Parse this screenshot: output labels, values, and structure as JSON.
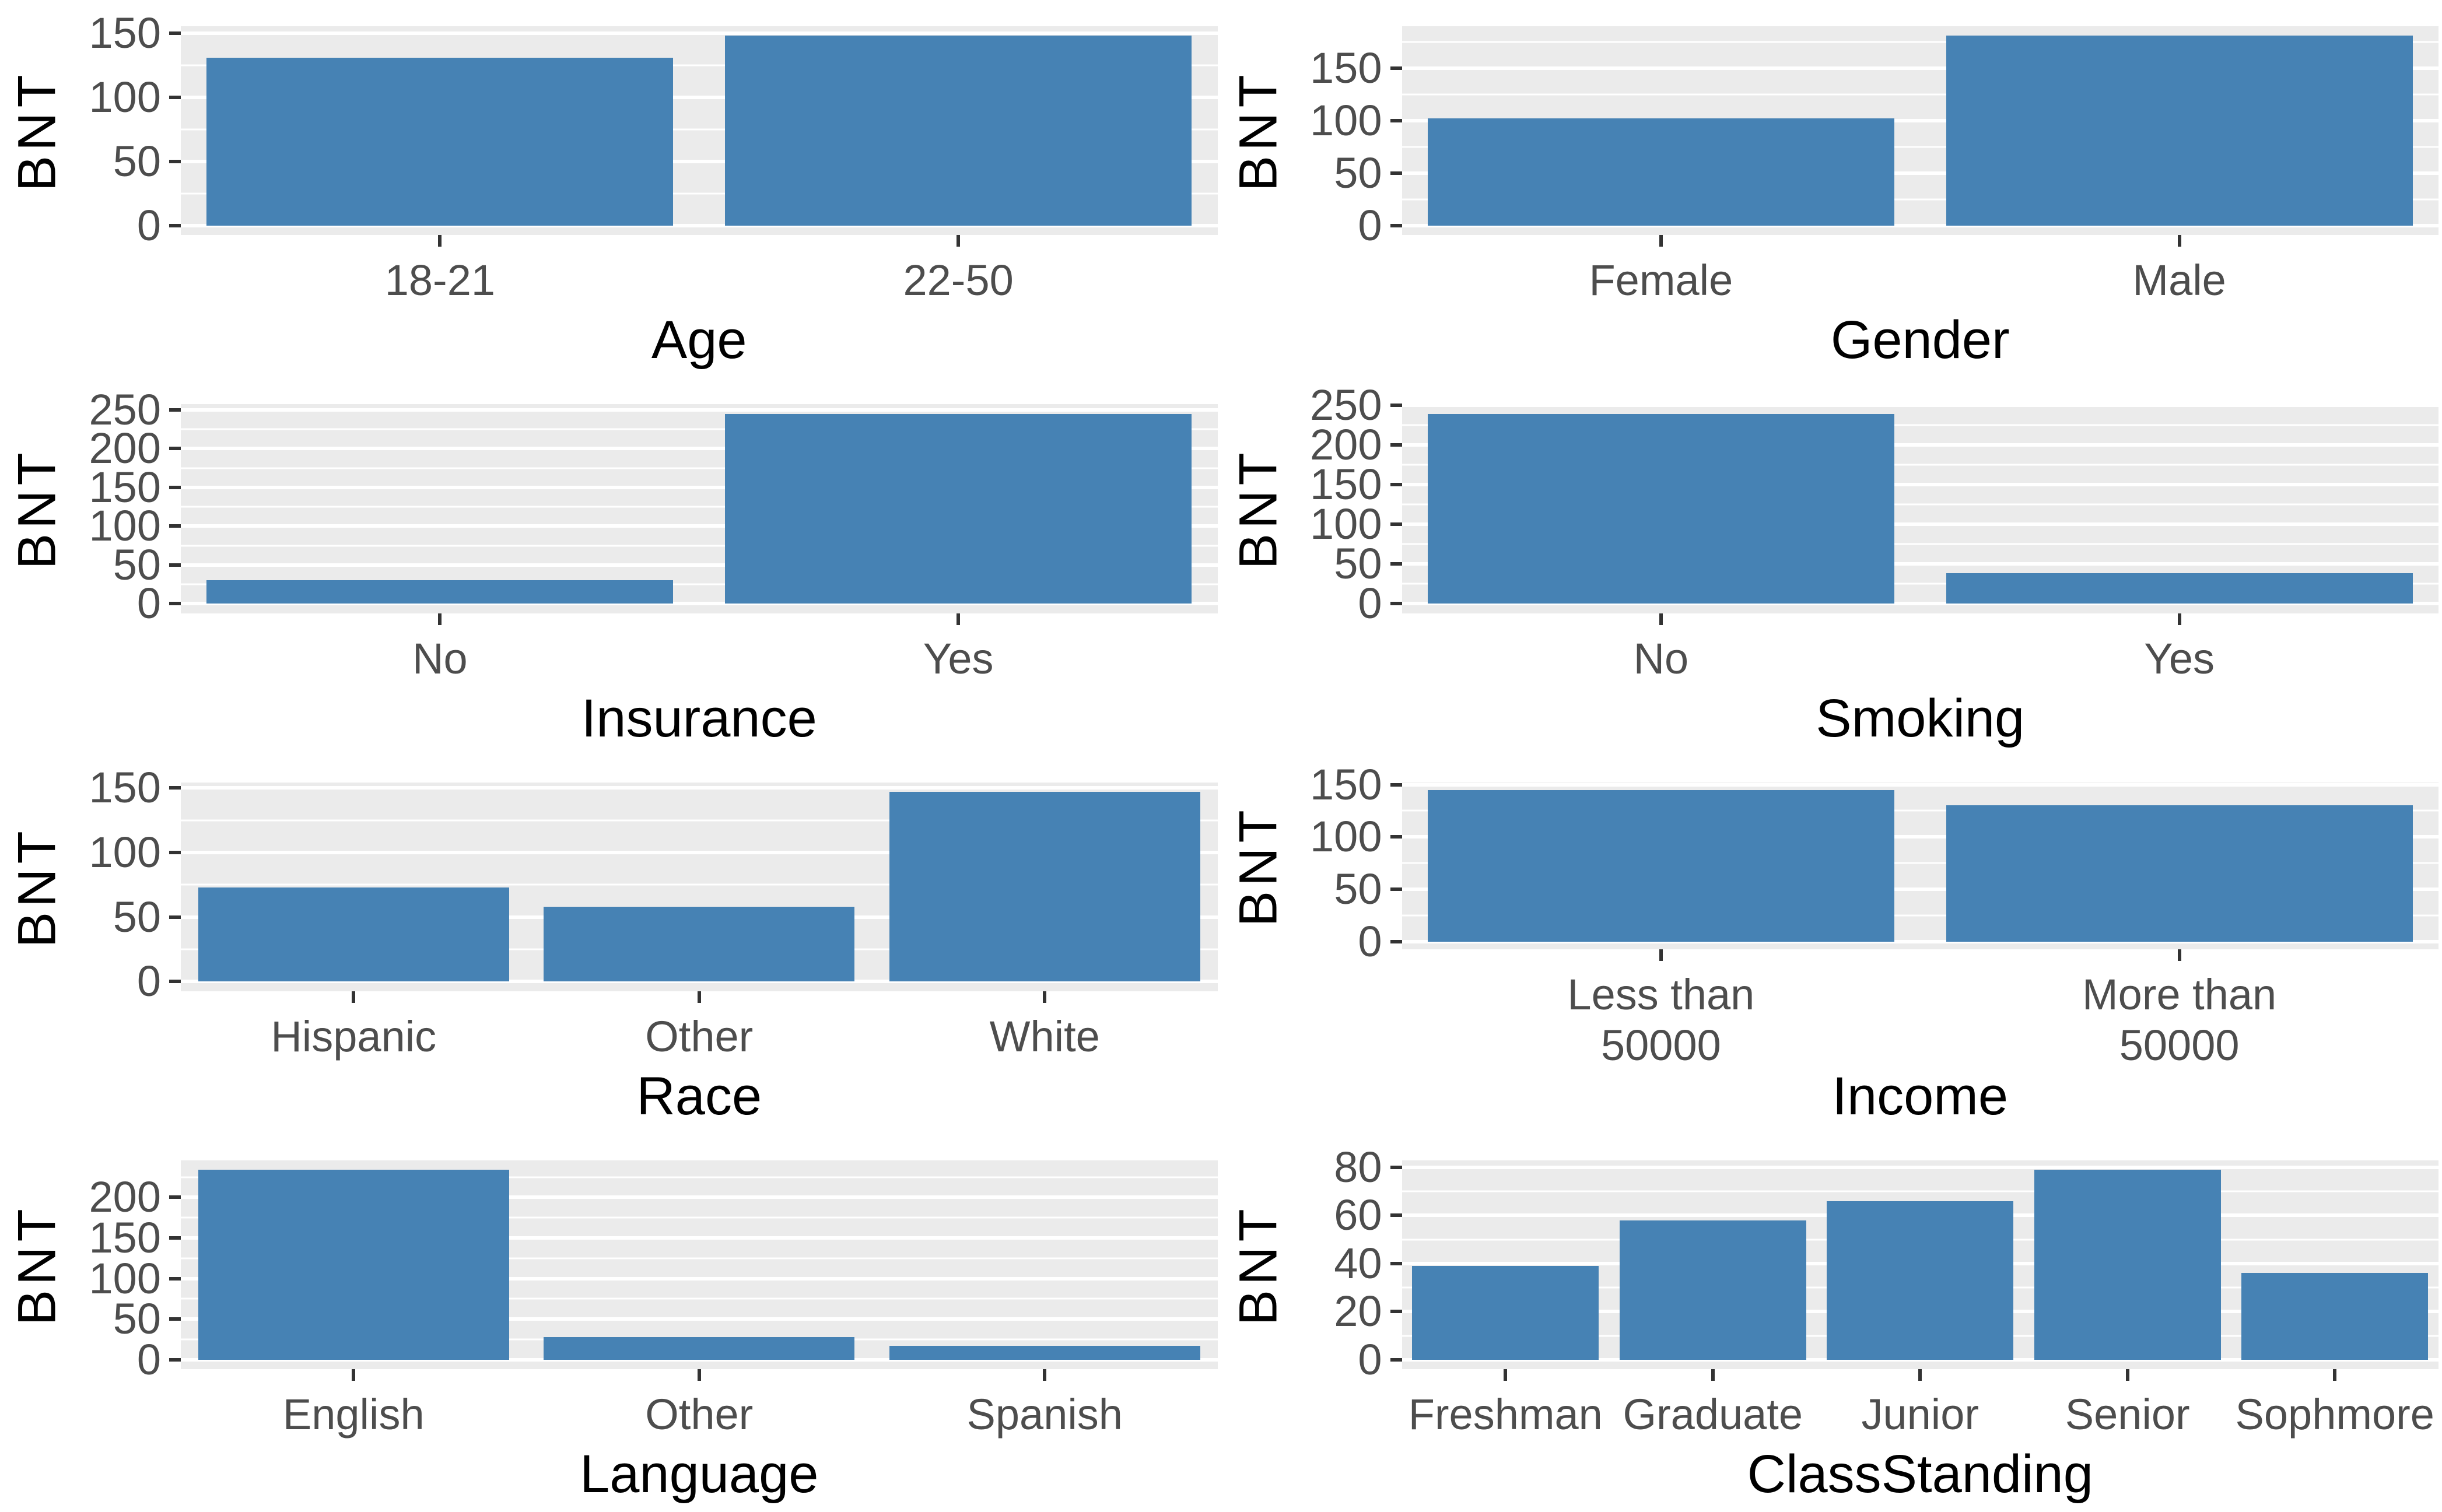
{
  "figure": {
    "rows": 4,
    "cols": 2,
    "description": "Grid of eight bar charts of BNT by demographic variables"
  },
  "colors": {
    "bar": "#4682B4",
    "panel_bg": "#EBEBEB",
    "grid": "#FFFFFF",
    "tick_label": "#4D4D4D",
    "tick_mark": "#333333",
    "axis_title": "#000000",
    "background": "#FFFFFF"
  },
  "chart_data": [
    {
      "type": "bar",
      "xlabel": "Age",
      "ylabel": "BNT",
      "categories": [
        "18-21",
        "22-50"
      ],
      "values": [
        131,
        148
      ],
      "yticks": [
        0,
        50,
        100,
        150
      ],
      "ylim": [
        0,
        155
      ],
      "grid": true,
      "legend": "none"
    },
    {
      "type": "bar",
      "xlabel": "Gender",
      "ylabel": "BNT",
      "categories": [
        "Female",
        "Male"
      ],
      "values": [
        102,
        181
      ],
      "yticks": [
        0,
        50,
        100,
        150
      ],
      "ylim": [
        0,
        190
      ],
      "grid": true,
      "legend": "none"
    },
    {
      "type": "bar",
      "xlabel": "Insurance",
      "ylabel": "BNT",
      "categories": [
        "No",
        "Yes"
      ],
      "values": [
        30,
        245
      ],
      "yticks": [
        0,
        50,
        100,
        150,
        200,
        250
      ],
      "ylim": [
        0,
        257
      ],
      "grid": true,
      "legend": "none"
    },
    {
      "type": "bar",
      "xlabel": "Smoking",
      "ylabel": "BNT",
      "categories": [
        "No",
        "Yes"
      ],
      "values": [
        239,
        38
      ],
      "yticks": [
        0,
        50,
        100,
        150,
        200,
        250
      ],
      "ylim": [
        0,
        251
      ],
      "grid": true,
      "legend": "none"
    },
    {
      "type": "bar",
      "xlabel": "Race",
      "ylabel": "BNT",
      "categories": [
        "Hispanic",
        "Other",
        "White"
      ],
      "values": [
        73,
        58,
        147
      ],
      "yticks": [
        0,
        50,
        100,
        150
      ],
      "ylim": [
        0,
        154
      ],
      "grid": true,
      "legend": "none"
    },
    {
      "type": "bar",
      "xlabel": "Income",
      "ylabel": "BNT",
      "categories": [
        [
          "Less than",
          "50000"
        ],
        [
          "More than",
          "50000"
        ]
      ],
      "values": [
        145,
        130
      ],
      "yticks": [
        0,
        50,
        100,
        150
      ],
      "ylim": [
        0,
        152
      ],
      "grid": true,
      "legend": "none"
    },
    {
      "type": "bar",
      "xlabel": "Language",
      "ylabel": "BNT",
      "categories": [
        "English",
        "Other",
        "Spanish"
      ],
      "values": [
        234,
        28,
        17
      ],
      "yticks": [
        0,
        50,
        100,
        150,
        200
      ],
      "ylim": [
        0,
        246
      ],
      "grid": true,
      "legend": "none"
    },
    {
      "type": "bar",
      "xlabel": "ClassStanding",
      "ylabel": "BNT",
      "categories": [
        "Freshman",
        "Graduate",
        "Junior",
        "Senior",
        "Sophmore"
      ],
      "values": [
        39,
        58,
        66,
        79,
        36
      ],
      "yticks": [
        0,
        20,
        40,
        60,
        80
      ],
      "ylim": [
        0,
        83
      ],
      "grid": true,
      "legend": "none"
    }
  ]
}
